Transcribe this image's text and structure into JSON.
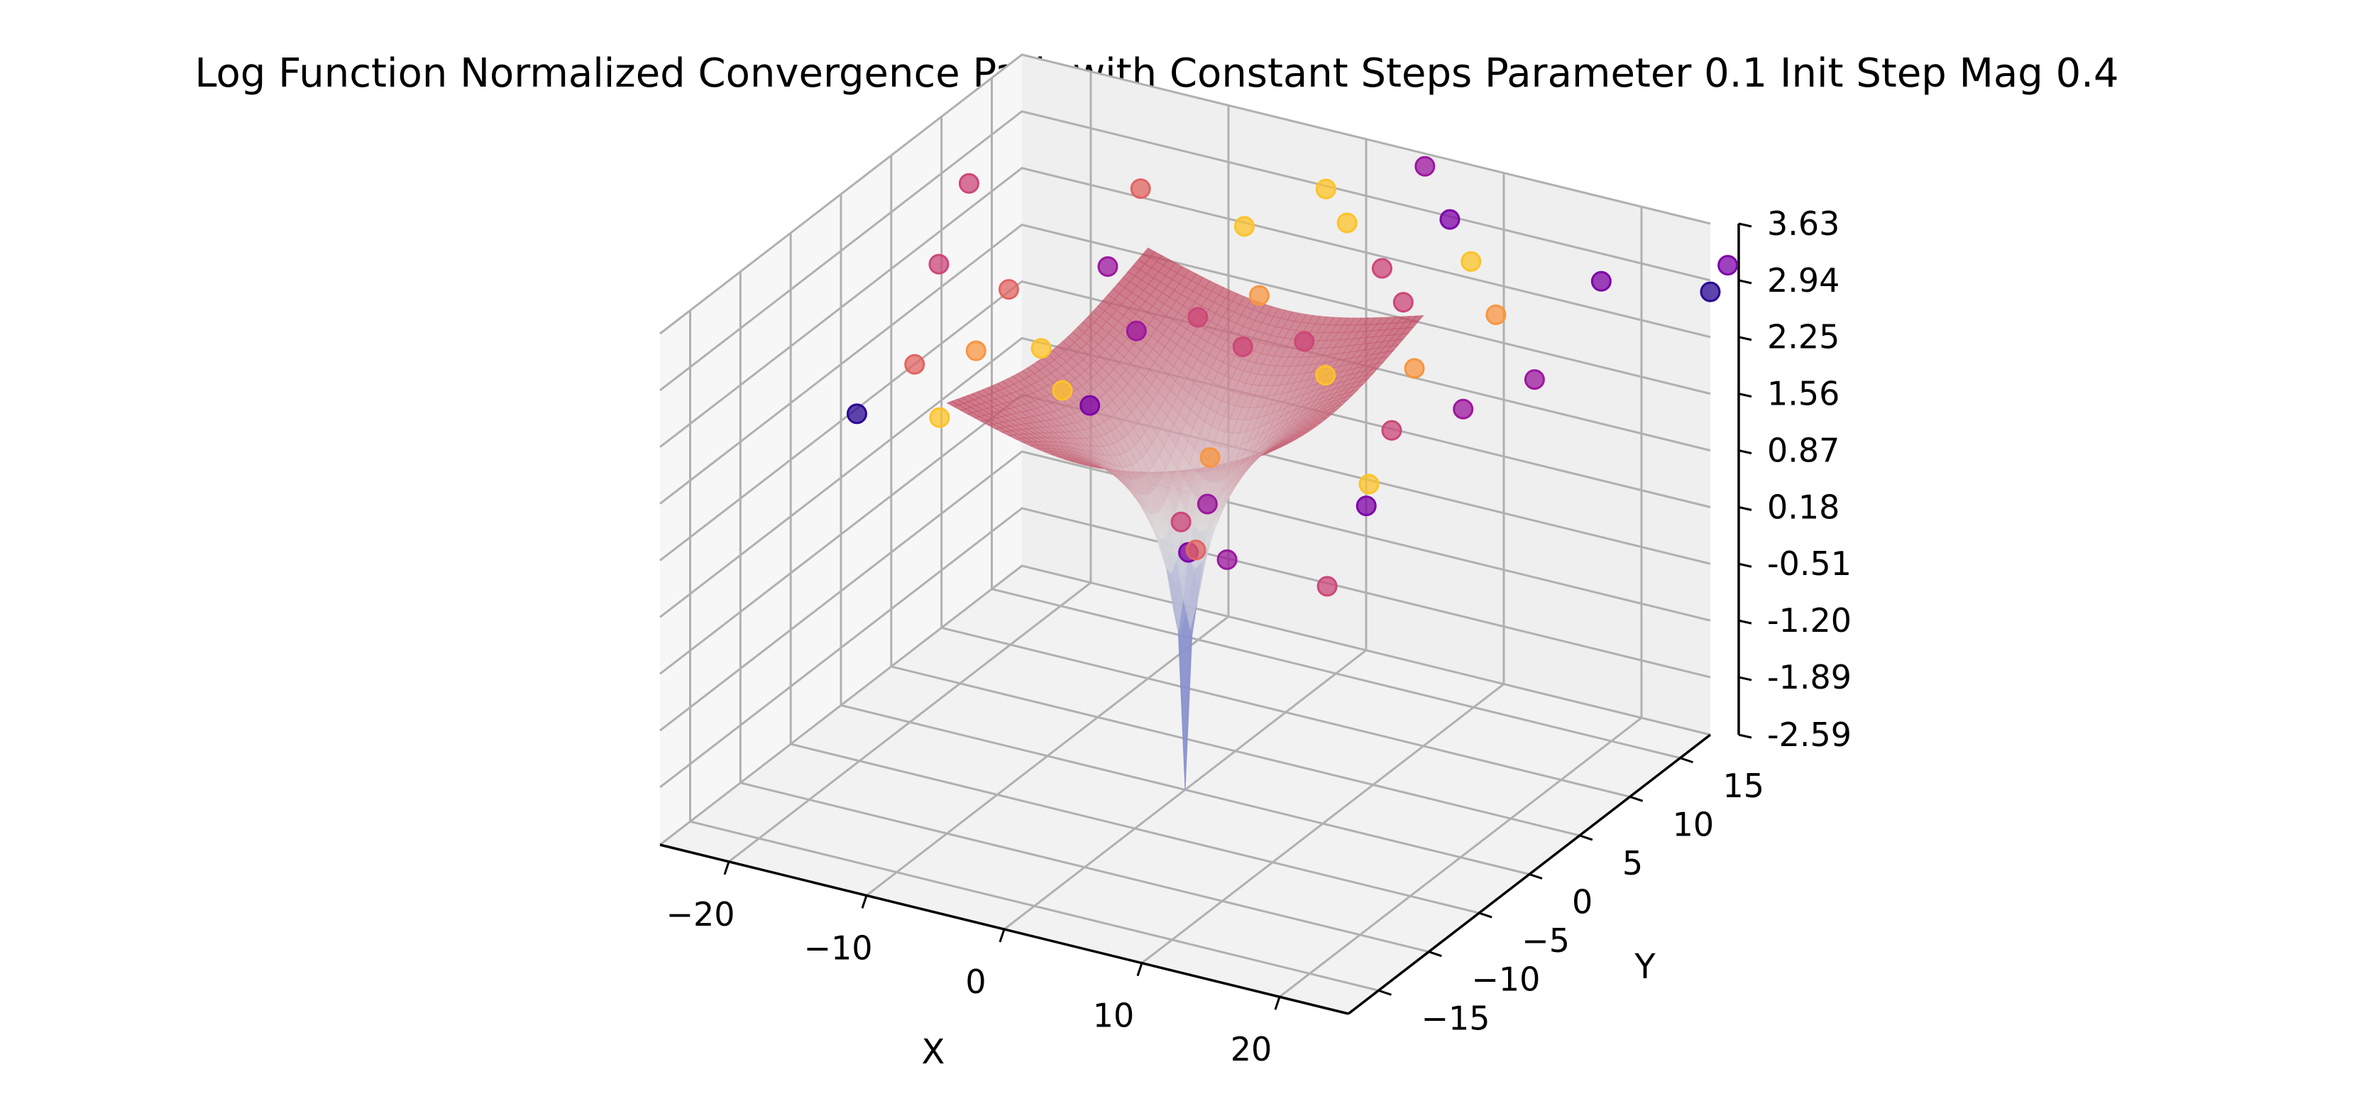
{
  "chart_data": {
    "type": "scatter",
    "title": "Log Function Normalized Convergence Path with Constant Steps Parameter 0.1 Init Step Mag 0.4",
    "xlabel": "X",
    "ylabel": "Y",
    "zlabel": "",
    "x_ticks": [
      "−20",
      "−10",
      "0",
      "10",
      "20"
    ],
    "y_ticks": [
      "−15",
      "−10",
      "−5",
      "0",
      "5",
      "10",
      "15"
    ],
    "z_ticks": [
      "-2.59",
      "-1.89",
      "-1.20",
      "-0.51",
      "0.18",
      "0.87",
      "1.56",
      "2.25",
      "2.94",
      "3.63"
    ],
    "xlim": [
      -25,
      25
    ],
    "ylim": [
      -18,
      18
    ],
    "zlim": [
      -2.59,
      3.63
    ],
    "grid": true,
    "surface": {
      "function": "log(sqrt(x^2 + y^2))",
      "x_range": [
        -10,
        10
      ],
      "y_range": [
        -10,
        10
      ],
      "colormap": "coolwarm"
    },
    "points": [
      {
        "x": -23,
        "y": 10,
        "z": 2.9,
        "color": "#cc4778"
      },
      {
        "x": -23,
        "y": 7,
        "z": 2.2,
        "color": "#cc4778"
      },
      {
        "x": -18,
        "y": -8,
        "z": 2.0,
        "color": "#2a0593"
      },
      {
        "x": -16,
        "y": -5,
        "z": 2.4,
        "color": "#e16462"
      },
      {
        "x": -15,
        "y": 3,
        "z": 2.6,
        "color": "#e16462"
      },
      {
        "x": -12,
        "y": 12,
        "z": 3.1,
        "color": "#e16462"
      },
      {
        "x": -13,
        "y": -3,
        "z": 2.5,
        "color": "#f89540"
      },
      {
        "x": -12,
        "y": -8,
        "z": 2.2,
        "color": "#fdc328"
      },
      {
        "x": -10,
        "y": 6,
        "z": 2.8,
        "color": "#9c179e"
      },
      {
        "x": -9,
        "y": -2,
        "z": 2.6,
        "color": "#fdc328"
      },
      {
        "x": -6,
        "y": -4,
        "z": 2.4,
        "color": "#fdc328"
      },
      {
        "x": -5,
        "y": 2,
        "z": 2.6,
        "color": "#9c179e"
      },
      {
        "x": -4,
        "y": -4,
        "z": 2.3,
        "color": "#7e03a8"
      },
      {
        "x": -3,
        "y": 10,
        "z": 3.2,
        "color": "#fdc328"
      },
      {
        "x": -2,
        "y": 4,
        "z": 2.7,
        "color": "#cc4778"
      },
      {
        "x": 0,
        "y": 14,
        "z": 3.4,
        "color": "#fdc328"
      },
      {
        "x": 1,
        "y": 6,
        "z": 2.9,
        "color": "#f89540"
      },
      {
        "x": 2,
        "y": 3,
        "z": 2.6,
        "color": "#cc4778"
      },
      {
        "x": 3,
        "y": 12,
        "z": 3.3,
        "color": "#fdc328"
      },
      {
        "x": 4,
        "y": -3,
        "z": 1.9,
        "color": "#f89540"
      },
      {
        "x": 5,
        "y": 17,
        "z": 3.6,
        "color": "#9c179e"
      },
      {
        "x": 5,
        "y": 5,
        "z": 2.6,
        "color": "#cc4778"
      },
      {
        "x": 6,
        "y": -6,
        "z": 1.7,
        "color": "#9c179e"
      },
      {
        "x": 7,
        "y": 10,
        "z": 3.1,
        "color": "#cc4778"
      },
      {
        "x": 7,
        "y": -10,
        "z": 1.9,
        "color": "#cc4778"
      },
      {
        "x": 8,
        "y": 3,
        "z": 2.5,
        "color": "#fdc328"
      },
      {
        "x": 9,
        "y": 14,
        "z": 3.4,
        "color": "#7e03a8"
      },
      {
        "x": 9,
        "y": -12,
        "z": 1.8,
        "color": "#7e03a8"
      },
      {
        "x": 10,
        "y": 8,
        "z": 3.0,
        "color": "#cc4778"
      },
      {
        "x": 11,
        "y": -14,
        "z": 2.1,
        "color": "#e16462"
      },
      {
        "x": 12,
        "y": 12,
        "z": 3.2,
        "color": "#fdc328"
      },
      {
        "x": 13,
        "y": 5,
        "z": 2.6,
        "color": "#f89540"
      },
      {
        "x": 14,
        "y": -15,
        "z": 2.2,
        "color": "#9c179e"
      },
      {
        "x": 15,
        "y": 0,
        "z": 2.4,
        "color": "#cc4778"
      },
      {
        "x": 16,
        "y": 9,
        "z": 3.0,
        "color": "#f89540"
      },
      {
        "x": 17,
        "y": -5,
        "z": 2.3,
        "color": "#fdc328"
      },
      {
        "x": 18,
        "y": 3,
        "z": 2.5,
        "color": "#9c179e"
      },
      {
        "x": 19,
        "y": -8,
        "z": 2.4,
        "color": "#7e03a8"
      },
      {
        "x": 20,
        "y": 14,
        "z": 3.1,
        "color": "#7e03a8"
      },
      {
        "x": 21,
        "y": 6,
        "z": 2.7,
        "color": "#9c179e"
      },
      {
        "x": 22,
        "y": -16,
        "z": 2.3,
        "color": "#cc4778"
      },
      {
        "x": 25,
        "y": 18,
        "z": 2.8,
        "color": "#2a0593"
      },
      {
        "x": 27,
        "y": 17,
        "z": 3.3,
        "color": "#7e03a8"
      }
    ]
  }
}
